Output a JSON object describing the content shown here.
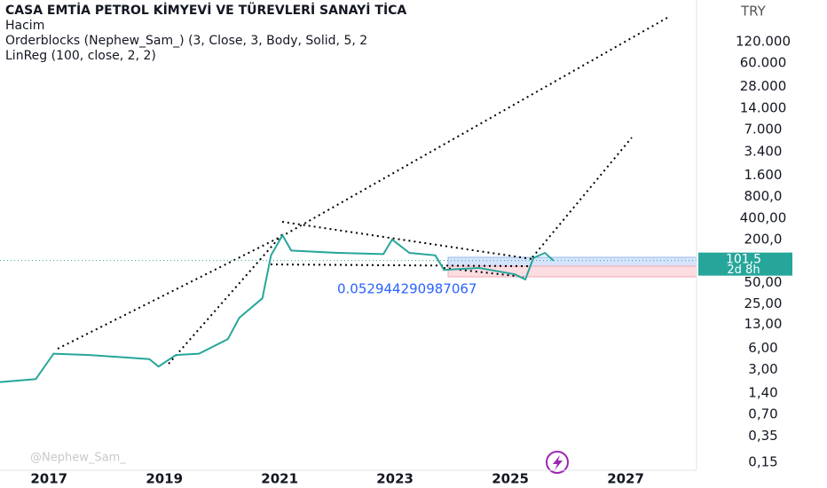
{
  "chart_data": {
    "type": "line",
    "title": "CASA EMTİA PETROL KİMYEVİ VE TÜREVLERİ SANAYİ TİCA",
    "indicators": [
      "Hacim",
      "Orderblocks (Nephew_Sam_) (3, Close, 3, Body, Solid, 5, 2",
      "LinReg (100, close, 2, 2)"
    ],
    "currency": "TRY",
    "watermark": "@Nephew_Sam_",
    "annotation": "0.052944290987067",
    "countdown": "2d 8h",
    "last_price": {
      "value": 101.5,
      "label": "101,5"
    },
    "log_scale": true,
    "grid": false,
    "x": [
      2016.15,
      2016.77,
      2017.08,
      2017.7,
      2018.74,
      2018.9,
      2019.2,
      2019.6,
      2020.1,
      2020.3,
      2020.7,
      2020.85,
      2021.05,
      2021.2,
      2022.0,
      2022.8,
      2022.95,
      2023.25,
      2023.7,
      2023.85,
      2024.46,
      2025.08,
      2025.26,
      2025.4,
      2025.6,
      2025.75
    ],
    "series": [
      {
        "name": "CASA",
        "color": "#26a69a",
        "values": [
          2.0,
          2.2,
          5.0,
          4.8,
          4.2,
          3.3,
          4.8,
          5.0,
          8.0,
          16,
          30,
          120,
          230,
          140,
          130,
          125,
          200,
          130,
          120,
          75,
          80,
          65,
          55,
          110,
          130,
          101.5
        ]
      }
    ],
    "xlim": [
      2016.15,
      2028.23
    ],
    "xticks": [
      2017,
      2019,
      2021,
      2023,
      2025,
      2027
    ],
    "ylim": [
      0.126,
      461000
    ],
    "yticks": [
      {
        "value": 120000,
        "label": "120.000"
      },
      {
        "value": 60000,
        "label": "60.000"
      },
      {
        "value": 28000,
        "label": "28.000"
      },
      {
        "value": 14000,
        "label": "14.000"
      },
      {
        "value": 7000,
        "label": "7.000"
      },
      {
        "value": 3400,
        "label": "3.400"
      },
      {
        "value": 1600,
        "label": "1.600"
      },
      {
        "value": 800,
        "label": "800,0"
      },
      {
        "value": 400,
        "label": "400,00"
      },
      {
        "value": 200,
        "label": "200,0"
      },
      {
        "value": 50,
        "label": "50,00"
      },
      {
        "value": 25,
        "label": "25,00"
      },
      {
        "value": 13,
        "label": "13,00"
      },
      {
        "value": 6,
        "label": "6,00"
      },
      {
        "value": 3,
        "label": "3,00"
      },
      {
        "value": 1.4,
        "label": "1,40"
      },
      {
        "value": 0.7,
        "label": "0,70"
      },
      {
        "value": 0.35,
        "label": "0,35"
      },
      {
        "value": 0.15,
        "label": "0,15"
      }
    ]
  }
}
